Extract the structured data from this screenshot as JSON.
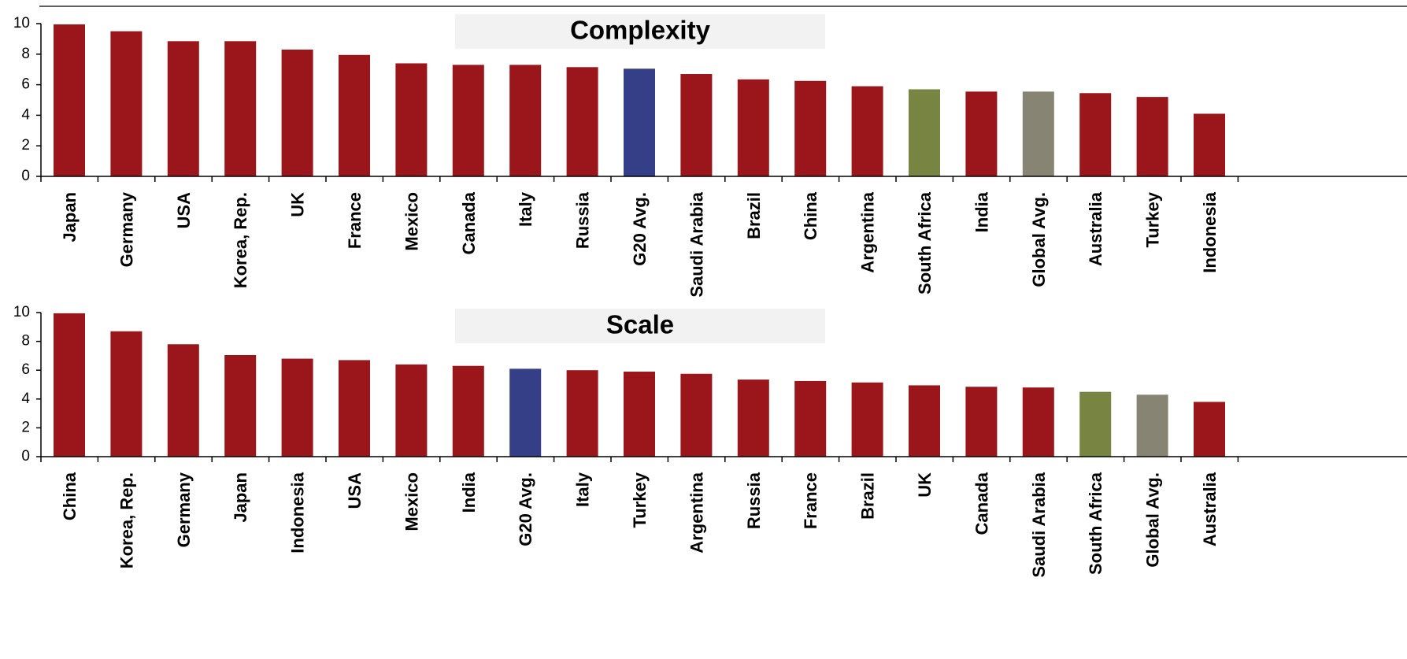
{
  "chart_data": [
    {
      "type": "bar",
      "title": "Complexity",
      "ylim": [
        0,
        10
      ],
      "yticks": [
        "0",
        "2",
        "4",
        "6",
        "8",
        "10"
      ],
      "categories": [
        "Japan",
        "Germany",
        "USA",
        "Korea, Rep.",
        "UK",
        "France",
        "Mexico",
        "Canada",
        "Italy",
        "Russia",
        "G20 Avg.",
        "Saudi Arabia",
        "Brazil",
        "China",
        "Argentina",
        "South Africa",
        "India",
        "Global Avg.",
        "Australia",
        "Turkey",
        "Indonesia"
      ],
      "values": [
        9.95,
        9.5,
        8.85,
        8.85,
        8.3,
        7.95,
        7.4,
        7.3,
        7.3,
        7.15,
        7.05,
        6.7,
        6.35,
        6.25,
        5.9,
        5.7,
        5.55,
        5.55,
        5.45,
        5.2,
        4.1
      ],
      "colors": [
        "#9b161a",
        "#9b161a",
        "#9b161a",
        "#9b161a",
        "#9b161a",
        "#9b161a",
        "#9b161a",
        "#9b161a",
        "#9b161a",
        "#9b161a",
        "#343f87",
        "#9b161a",
        "#9b161a",
        "#9b161a",
        "#9b161a",
        "#788441",
        "#9b161a",
        "#888473",
        "#9b161a",
        "#9b161a",
        "#9b161a"
      ],
      "grid": false
    },
    {
      "type": "bar",
      "title": "Scale",
      "ylim": [
        0,
        10
      ],
      "yticks": [
        "0",
        "2",
        "4",
        "6",
        "8",
        "10"
      ],
      "categories": [
        "China",
        "Korea, Rep.",
        "Germany",
        "Japan",
        "Indonesia",
        "USA",
        "Mexico",
        "India",
        "G20 Avg.",
        "Italy",
        "Turkey",
        "Argentina",
        "Russia",
        "France",
        "Brazil",
        "UK",
        "Canada",
        "Saudi Arabia",
        "South Africa",
        "Global Avg.",
        "Australia"
      ],
      "values": [
        9.95,
        8.7,
        7.8,
        7.05,
        6.8,
        6.7,
        6.4,
        6.3,
        6.1,
        6.0,
        5.9,
        5.75,
        5.35,
        5.25,
        5.15,
        4.95,
        4.85,
        4.8,
        4.5,
        4.3,
        3.8
      ],
      "colors": [
        "#9b161a",
        "#9b161a",
        "#9b161a",
        "#9b161a",
        "#9b161a",
        "#9b161a",
        "#9b161a",
        "#9b161a",
        "#343f87",
        "#9b161a",
        "#9b161a",
        "#9b161a",
        "#9b161a",
        "#9b161a",
        "#9b161a",
        "#9b161a",
        "#9b161a",
        "#9b161a",
        "#788441",
        "#888473",
        "#9b161a"
      ],
      "grid": false
    }
  ]
}
